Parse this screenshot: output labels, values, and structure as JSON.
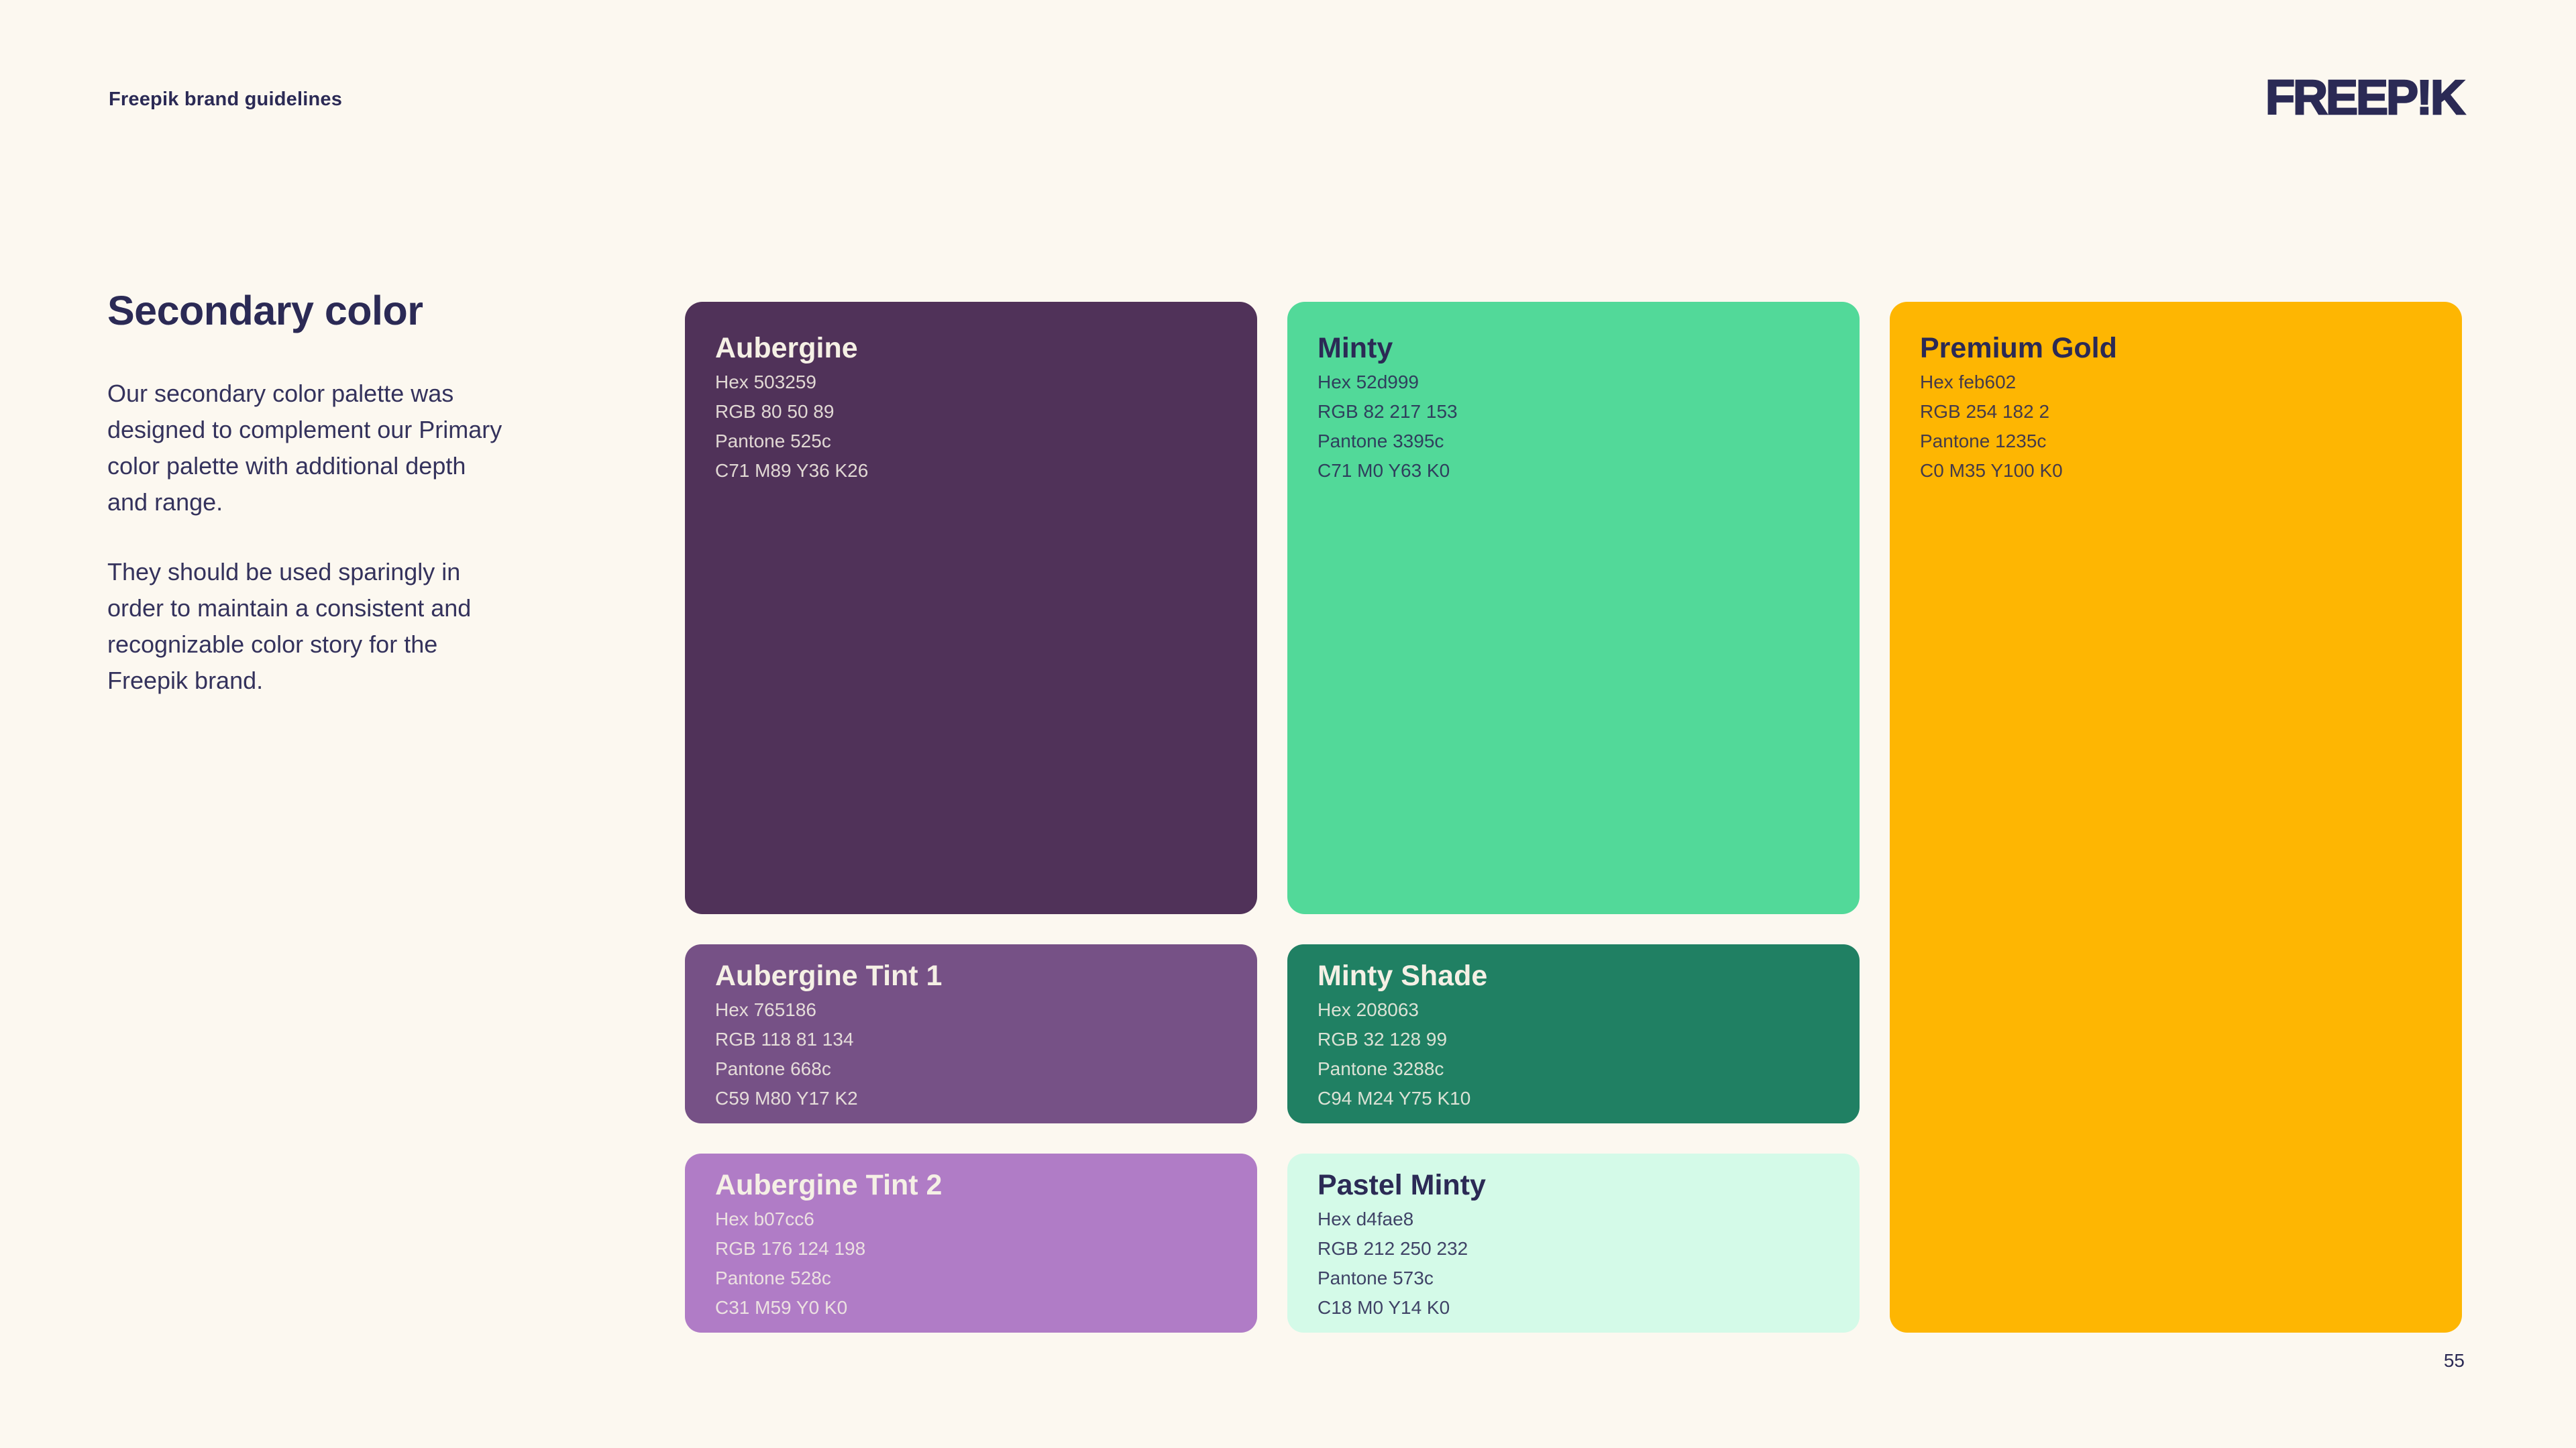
{
  "page": {
    "colors": {
      "background": "#FCF8F0",
      "navy": "#2B2A55",
      "cream_text": "#F5F0E5"
    },
    "page_number": "55"
  },
  "header": {
    "title": "Freepik brand guidelines",
    "logo_text": "FREEP!K"
  },
  "intro": {
    "heading": "Secondary color",
    "paragraph1": "Our secondary color palette was\ndesigned to complement our Primary\ncolor palette with additional depth\nand range.",
    "paragraph2": "They should be used sparingly in\norder to maintain a consistent and\nrecognizable color story for the\nFreepik brand."
  },
  "cards": [
    {
      "name": "Aubergine",
      "hex": "Hex 503259",
      "rgb": "RGB 80 50 89",
      "pantone": "Pantone 525c",
      "cmyk": "C71 M89 Y36 K26",
      "bg": "#503259",
      "text_color": "#F5F0E5"
    },
    {
      "name": "Minty",
      "hex": "Hex 52d999",
      "rgb": "RGB 82 217 153",
      "pantone": "Pantone 3395c",
      "cmyk": "C71 M0 Y63 K0",
      "bg": "#52D999",
      "text_color": "#2B2A55"
    },
    {
      "name": "Premium Gold",
      "hex": "Hex feb602",
      "rgb": "RGB 254 182 2",
      "pantone": "Pantone 1235c",
      "cmyk": "C0 M35 Y100 K0",
      "bg": "#FEB602",
      "text_color": "#2B2A55"
    },
    {
      "name": "Aubergine Tint 1",
      "hex": "Hex 765186",
      "rgb": "RGB 118 81 134",
      "pantone": "Pantone 668c",
      "cmyk": "C59 M80 Y17 K2",
      "bg": "#765186",
      "text_color": "#F5F0E5"
    },
    {
      "name": "Minty Shade",
      "hex": "Hex 208063",
      "rgb": "RGB 32 128 99",
      "pantone": "Pantone 3288c",
      "cmyk": "C94 M24 Y75 K10",
      "bg": "#208063",
      "text_color": "#F5F0E5"
    },
    {
      "name": "Aubergine Tint 2",
      "hex": "Hex b07cc6",
      "rgb": "RGB 176 124 198",
      "pantone": "Pantone 528c",
      "cmyk": "C31 M59 Y0 K0",
      "bg": "#B07CC6",
      "text_color": "#F5F0E5"
    },
    {
      "name": "Pastel Minty",
      "hex": "Hex d4fae8",
      "rgb": "RGB 212 250 232",
      "pantone": "Pantone 573c",
      "cmyk": "C18 M0 Y14 K0",
      "bg": "#D4FAE8",
      "text_color": "#2B2A55"
    }
  ]
}
